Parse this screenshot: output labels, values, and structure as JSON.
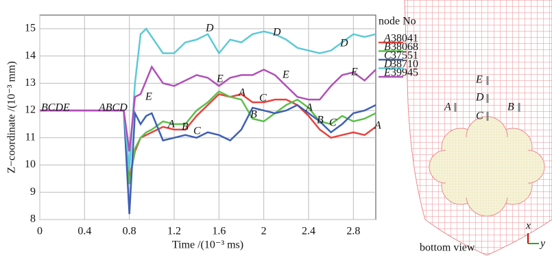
{
  "chart_data": {
    "type": "line",
    "y_label": "Z−coordinate /(10⁻³ mm)",
    "x_label": "Time /(10⁻³ ms)",
    "legend_title": "node No",
    "x": [
      0,
      0.75,
      0.8,
      0.85,
      0.9,
      0.95,
      1.0,
      1.1,
      1.2,
      1.3,
      1.4,
      1.5,
      1.6,
      1.7,
      1.8,
      1.9,
      2.0,
      2.1,
      2.2,
      2.3,
      2.4,
      2.5,
      2.6,
      2.7,
      2.8,
      2.9,
      3.0
    ],
    "series": [
      {
        "label": "A",
        "name": "38041",
        "color": "#e8413c",
        "values": [
          12,
          12,
          9.5,
          10.5,
          11.0,
          11.1,
          11.2,
          11.4,
          11.3,
          11.3,
          11.8,
          12.2,
          12.6,
          12.5,
          12.6,
          12.3,
          12.3,
          12.4,
          12.4,
          12.2,
          11.8,
          11.3,
          11.0,
          11.1,
          11.2,
          11.1,
          11.4
        ]
      },
      {
        "label": "B",
        "name": "38068",
        "color": "#5cbf4a",
        "values": [
          12,
          12,
          9.3,
          10.6,
          11.0,
          11.2,
          11.3,
          11.6,
          11.5,
          11.5,
          12.0,
          12.3,
          12.7,
          12.5,
          12.4,
          11.7,
          11.6,
          11.9,
          12.2,
          12.4,
          12.1,
          11.6,
          11.5,
          11.8,
          11.6,
          11.7,
          11.9
        ]
      },
      {
        "label": "C",
        "name": "37551",
        "color": "#3f5fb5",
        "values": [
          12,
          12,
          8.2,
          11.9,
          11.5,
          11.8,
          11.9,
          10.9,
          11.0,
          11.1,
          11.0,
          11.2,
          11.1,
          10.9,
          11.3,
          12.1,
          12.0,
          11.9,
          12.0,
          12.2,
          11.9,
          11.6,
          11.2,
          11.5,
          11.9,
          12.0,
          12.2
        ]
      },
      {
        "label": "D",
        "name": "38710",
        "color": "#5ccad6",
        "values": [
          12,
          12,
          9.8,
          13.0,
          14.8,
          15.0,
          14.7,
          14.1,
          14.1,
          14.5,
          14.6,
          14.8,
          14.1,
          14.6,
          14.5,
          14.8,
          14.9,
          14.8,
          14.6,
          14.3,
          14.2,
          14.1,
          14.2,
          14.5,
          14.8,
          14.7,
          14.8
        ]
      },
      {
        "label": "E",
        "name": "39945",
        "color": "#b04fb8",
        "values": [
          12,
          12,
          10.5,
          12.5,
          12.6,
          13.1,
          13.6,
          13.0,
          12.9,
          13.1,
          13.3,
          13.2,
          12.9,
          13.2,
          13.3,
          13.3,
          13.5,
          13.3,
          12.9,
          12.5,
          12.4,
          12.4,
          12.9,
          13.3,
          13.4,
          13.1,
          13.5
        ]
      }
    ],
    "annotations": [
      "BCDE",
      "ABCD",
      "E",
      "A",
      "B",
      "C",
      "D",
      "E",
      "A",
      "C",
      "B",
      "D",
      "E",
      "A",
      "B",
      "C",
      "D",
      "E",
      "A"
    ],
    "xlim": [
      0,
      3
    ],
    "ylim": [
      8,
      15.5
    ],
    "xticks": [
      0,
      0.4,
      0.8,
      1.2,
      1.6,
      2.0,
      2.4,
      2.8
    ],
    "yticks": [
      8,
      9,
      10,
      11,
      12,
      13,
      14,
      15
    ],
    "grid": true
  },
  "diagram": {
    "labels": [
      "A",
      "B",
      "C",
      "D",
      "E"
    ],
    "caption": "bottom view",
    "axes": [
      "x",
      "y"
    ]
  }
}
